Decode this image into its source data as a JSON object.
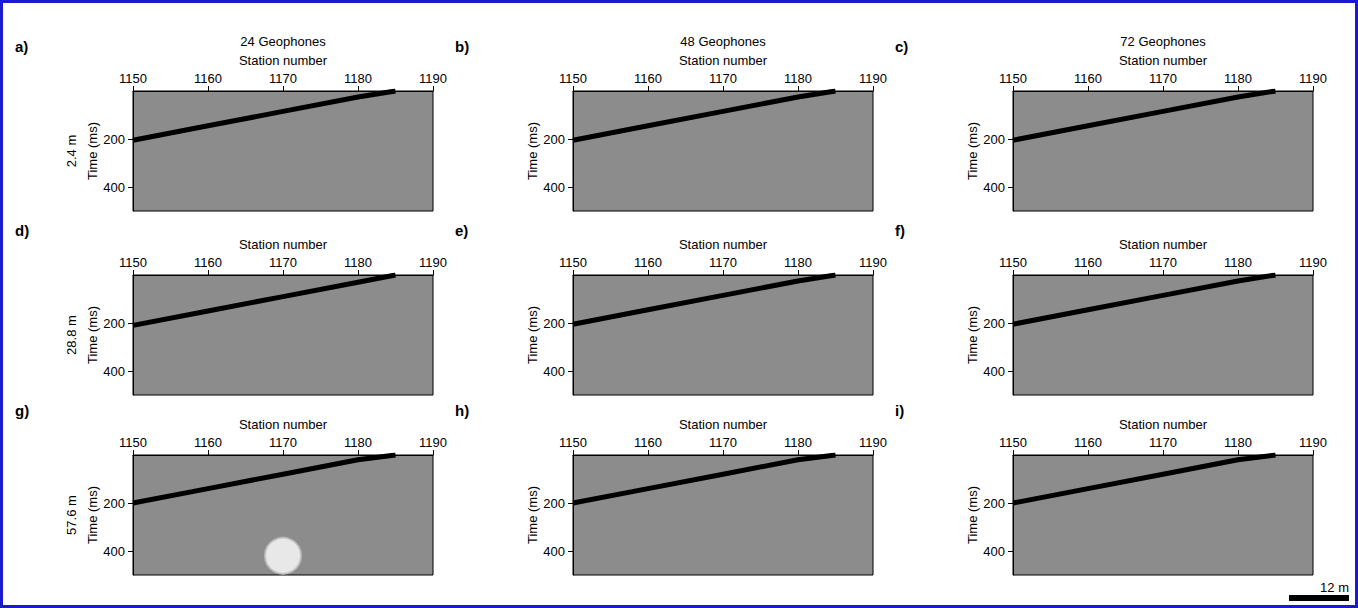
{
  "chart_data": [
    {
      "type": "line",
      "panel": "a)",
      "title": "24 Geophones",
      "row_label": "2.4 m",
      "x_label": "Station number",
      "y_label": "Time (ms)",
      "xlim": [
        1150,
        1190
      ],
      "xticks": [
        1150,
        1160,
        1170,
        1180,
        1190
      ],
      "ylim": [
        0,
        500
      ],
      "yticks": [
        200,
        400
      ],
      "series": [
        {
          "type": "line",
          "color": "#000000",
          "x": [
            1150,
            1160,
            1170,
            1180,
            1185
          ],
          "values": [
            205,
            145,
            85,
            25,
            0
          ]
        }
      ]
    },
    {
      "type": "line",
      "panel": "b)",
      "title": "48 Geophones",
      "x_label": "Station number",
      "y_label": "Time (ms)",
      "xlim": [
        1150,
        1190
      ],
      "xticks": [
        1150,
        1160,
        1170,
        1180,
        1190
      ],
      "ylim": [
        0,
        500
      ],
      "yticks": [
        200,
        400
      ],
      "series": [
        {
          "type": "line",
          "color": "#000000",
          "x": [
            1150,
            1160,
            1170,
            1180,
            1185
          ],
          "values": [
            205,
            145,
            85,
            25,
            0
          ]
        }
      ]
    },
    {
      "type": "line",
      "panel": "c)",
      "title": "72 Geophones",
      "x_label": "Station number",
      "y_label": "Time (ms)",
      "xlim": [
        1150,
        1190
      ],
      "xticks": [
        1150,
        1160,
        1170,
        1180,
        1190
      ],
      "ylim": [
        0,
        500
      ],
      "yticks": [
        200,
        400
      ],
      "series": [
        {
          "type": "line",
          "color": "#000000",
          "x": [
            1150,
            1160,
            1170,
            1180,
            1185
          ],
          "values": [
            205,
            145,
            85,
            25,
            0
          ]
        }
      ]
    },
    {
      "type": "line",
      "panel": "d)",
      "row_label": "28.8 m",
      "x_label": "Station number",
      "y_label": "Time (ms)",
      "xlim": [
        1150,
        1190
      ],
      "xticks": [
        1150,
        1160,
        1170,
        1180,
        1190
      ],
      "ylim": [
        0,
        500
      ],
      "yticks": [
        200,
        400
      ],
      "series": [
        {
          "type": "line",
          "color": "#000000",
          "x": [
            1150,
            1160,
            1170,
            1180,
            1185
          ],
          "values": [
            210,
            150,
            90,
            30,
            0
          ]
        }
      ]
    },
    {
      "type": "line",
      "panel": "e)",
      "x_label": "Station number",
      "y_label": "Time (ms)",
      "xlim": [
        1150,
        1190
      ],
      "xticks": [
        1150,
        1160,
        1170,
        1180,
        1190
      ],
      "ylim": [
        0,
        500
      ],
      "yticks": [
        200,
        400
      ],
      "series": [
        {
          "type": "line",
          "color": "#000000",
          "x": [
            1150,
            1160,
            1170,
            1180,
            1185
          ],
          "values": [
            205,
            145,
            85,
            25,
            0
          ]
        }
      ]
    },
    {
      "type": "line",
      "panel": "f)",
      "x_label": "Station number",
      "y_label": "Time (ms)",
      "xlim": [
        1150,
        1190
      ],
      "xticks": [
        1150,
        1160,
        1170,
        1180,
        1190
      ],
      "ylim": [
        0,
        500
      ],
      "yticks": [
        200,
        400
      ],
      "series": [
        {
          "type": "line",
          "color": "#000000",
          "x": [
            1150,
            1160,
            1170,
            1180,
            1185
          ],
          "values": [
            205,
            145,
            85,
            25,
            0
          ]
        }
      ]
    },
    {
      "type": "line",
      "panel": "g)",
      "row_label": "57.6 m",
      "x_label": "Station number",
      "y_label": "Time (ms)",
      "xlim": [
        1150,
        1190
      ],
      "xticks": [
        1150,
        1160,
        1170,
        1180,
        1190
      ],
      "ylim": [
        0,
        500
      ],
      "yticks": [
        200,
        400
      ],
      "series": [
        {
          "type": "line",
          "color": "#000000",
          "x": [
            1150,
            1160,
            1170,
            1180,
            1185
          ],
          "values": [
            200,
            140,
            80,
            20,
            0
          ]
        },
        {
          "type": "scatter",
          "marker": "circle",
          "color": "#2a2a2a",
          "x": [
            1170
          ],
          "values": [
            420
          ]
        }
      ]
    },
    {
      "type": "line",
      "panel": "h)",
      "x_label": "Station number",
      "y_label": "Time (ms)",
      "xlim": [
        1150,
        1190
      ],
      "xticks": [
        1150,
        1160,
        1170,
        1180,
        1190
      ],
      "ylim": [
        0,
        500
      ],
      "yticks": [
        200,
        400
      ],
      "series": [
        {
          "type": "line",
          "color": "#000000",
          "x": [
            1150,
            1160,
            1170,
            1180,
            1185
          ],
          "values": [
            200,
            140,
            80,
            20,
            0
          ]
        }
      ]
    },
    {
      "type": "line",
      "panel": "i)",
      "x_label": "Station number",
      "y_label": "Time (ms)",
      "xlim": [
        1150,
        1190
      ],
      "xticks": [
        1150,
        1160,
        1170,
        1180,
        1190
      ],
      "ylim": [
        0,
        500
      ],
      "yticks": [
        200,
        400
      ],
      "series": [
        {
          "type": "line",
          "color": "#000000",
          "x": [
            1150,
            1160,
            1170,
            1180,
            1185
          ],
          "values": [
            200,
            140,
            80,
            20,
            0
          ]
        }
      ]
    }
  ],
  "scale_bar": {
    "label": "12 m"
  }
}
